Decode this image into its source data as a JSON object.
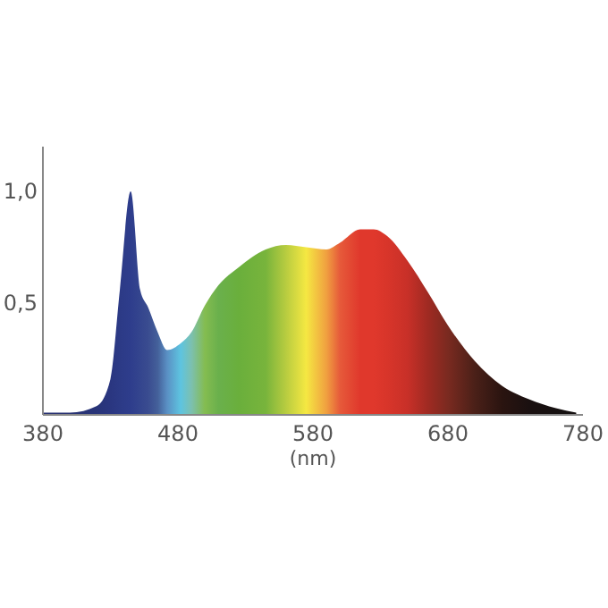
{
  "chart_data": {
    "type": "area",
    "xlabel": "(nm)",
    "xlim": [
      380,
      780
    ],
    "xticks": [
      380,
      480,
      580,
      680,
      780
    ],
    "ylim": [
      0,
      1.2
    ],
    "yticks": [
      {
        "value": 0.5,
        "label": "0,5"
      },
      {
        "value": 1,
        "label": "1,0"
      }
    ],
    "grid": false,
    "x": [
      380,
      400,
      420,
      430,
      437,
      445,
      452,
      458,
      465,
      472,
      482,
      490,
      500,
      510,
      525,
      545,
      560,
      575,
      590,
      600,
      615,
      625,
      635,
      650,
      665,
      680,
      700,
      720,
      740,
      760,
      775
    ],
    "series": [
      {
        "values": [
          0.01,
          0.01,
          0.04,
          0.16,
          0.56,
          1.0,
          0.56,
          0.48,
          0.37,
          0.29,
          0.32,
          0.37,
          0.49,
          0.58,
          0.66,
          0.74,
          0.76,
          0.75,
          0.74,
          0.77,
          0.83,
          0.83,
          0.8,
          0.69,
          0.55,
          0.4,
          0.24,
          0.13,
          0.07,
          0.03,
          0.01
        ],
        "colors": [
          "#283272",
          "#283272",
          "#283478",
          "#2a3680",
          "#2c3a86",
          "#2e3d8c",
          "#34458e",
          "#3a4c90",
          "#44609a",
          "#5a90c4",
          "#5ec4e0",
          "#7cc0b0",
          "#84bc50",
          "#6ab04c",
          "#6aaf3c",
          "#78b43c",
          "#b8cc40",
          "#f5e842",
          "#f0a040",
          "#e65a3a",
          "#e0382c",
          "#e0382c",
          "#d8352a",
          "#c83028",
          "#a02a22",
          "#7a2a20",
          "#4a2018",
          "#2a1410",
          "#1a1010",
          "#161010",
          "#141010"
        ]
      }
    ]
  }
}
